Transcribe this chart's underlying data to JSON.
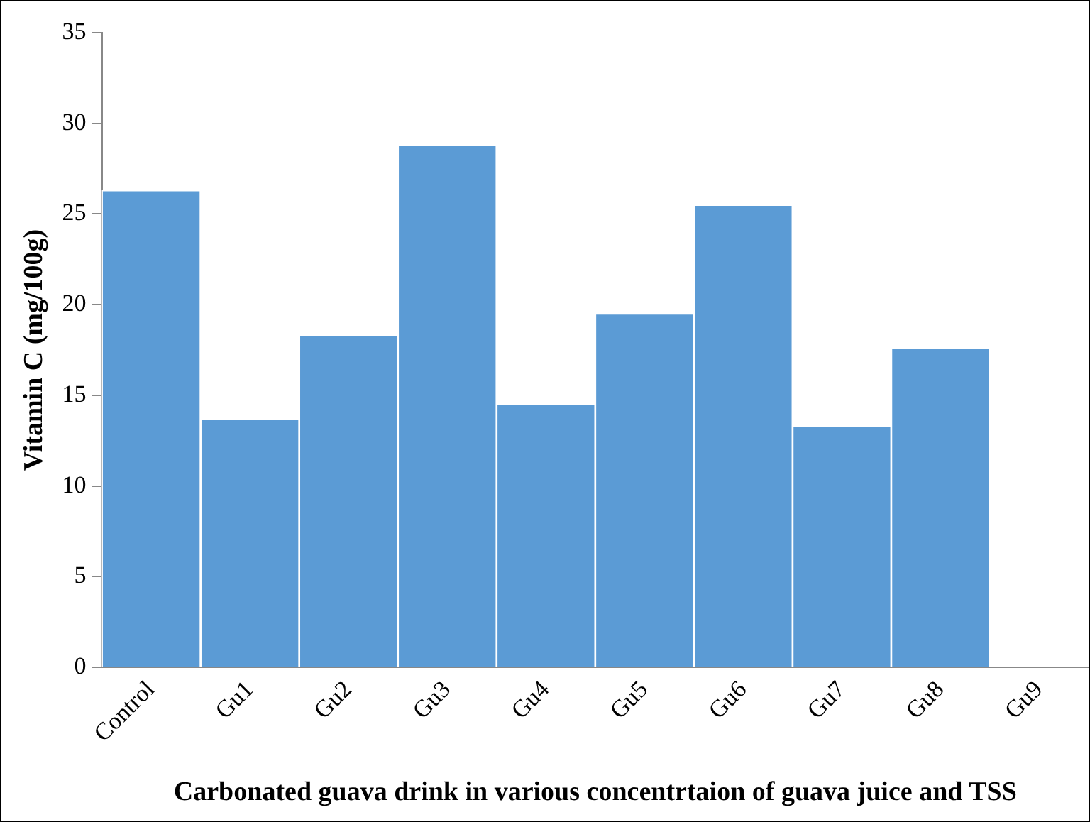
{
  "chart_data": {
    "type": "bar",
    "xlabel": "Carbonated guava drink in various concentrtaion of guava juice and TSS",
    "ylabel": "Vitamin C (mg/100g)",
    "categories": [
      "Control",
      "Gu1",
      "Gu2",
      "Gu3",
      "Gu4",
      "Gu5",
      "Gu6",
      "Gu7",
      "Gu8",
      "Gu9"
    ],
    "values": [
      26.3,
      13.7,
      18.3,
      28.8,
      14.5,
      19.5,
      25.5,
      13.3,
      17.6,
      0
    ],
    "color": "#5b9bd5",
    "ylim": [
      0,
      35
    ],
    "yticks": [
      0,
      5,
      10,
      15,
      20,
      25,
      30,
      35
    ],
    "grid": false,
    "legend": false
  }
}
